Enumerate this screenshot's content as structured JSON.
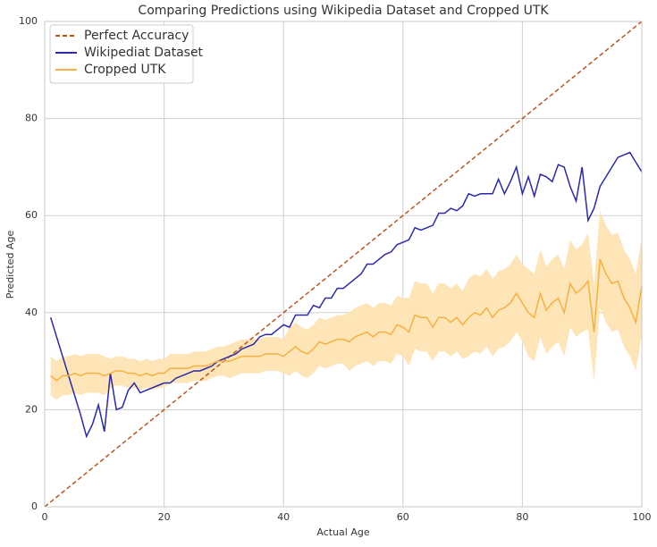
{
  "chart_data": {
    "type": "line",
    "title": "Comparing Predictions using Wikipedia Dataset and Cropped UTK",
    "x_label": "Actual Age",
    "y_label": "Predicted Age",
    "xlim": [
      0,
      100
    ],
    "ylim": [
      0,
      100
    ],
    "xticks": [
      0,
      20,
      40,
      60,
      80,
      100
    ],
    "yticks": [
      0,
      20,
      40,
      60,
      80,
      100
    ],
    "grid": true,
    "legend": "upper left",
    "x": [
      1,
      2,
      3,
      4,
      5,
      6,
      7,
      8,
      9,
      10,
      11,
      12,
      13,
      14,
      15,
      16,
      17,
      18,
      19,
      20,
      21,
      22,
      23,
      24,
      25,
      26,
      27,
      28,
      29,
      30,
      31,
      32,
      33,
      34,
      35,
      36,
      37,
      38,
      39,
      40,
      41,
      42,
      43,
      44,
      45,
      46,
      47,
      48,
      49,
      50,
      51,
      52,
      53,
      54,
      55,
      56,
      57,
      58,
      59,
      60,
      61,
      62,
      63,
      64,
      65,
      66,
      67,
      68,
      69,
      70,
      71,
      72,
      73,
      74,
      75,
      76,
      77,
      78,
      79,
      80,
      81,
      82,
      83,
      84,
      85,
      86,
      87,
      88,
      89,
      90,
      91,
      92,
      93,
      94,
      95,
      96,
      97,
      98,
      99,
      100
    ],
    "series": [
      {
        "name": "Perfect Accuracy",
        "color": "#b8561e",
        "dashed": true,
        "x": [
          0,
          100
        ],
        "values": [
          0,
          100
        ]
      },
      {
        "name": "Wikipediat Dataset",
        "color": "#2a2aa8",
        "values": [
          39,
          35,
          31,
          27,
          23,
          19,
          14.5,
          17,
          21,
          15.5,
          27.5,
          20,
          20.5,
          24,
          25.5,
          23.5,
          24,
          24.5,
          25,
          25.5,
          25.5,
          26.5,
          27,
          27.5,
          28,
          28,
          28.5,
          29,
          30,
          30.5,
          31,
          31.5,
          32.5,
          33,
          33.5,
          35,
          35.5,
          35.5,
          36.5,
          37.5,
          37,
          39.5,
          39.5,
          39.5,
          41.5,
          41,
          43,
          43,
          45,
          45,
          46,
          47,
          48,
          50,
          50,
          51,
          52,
          52.5,
          54,
          54.5,
          55,
          57.5,
          57,
          57.5,
          58,
          60.5,
          60.5,
          61.5,
          61,
          62,
          64.5,
          64,
          64.5,
          64.5,
          64.5,
          67.5,
          64.5,
          67,
          70,
          64.5,
          68,
          64,
          68.5,
          68,
          67,
          70.5,
          70,
          66,
          63,
          70,
          59,
          61.5,
          66,
          68,
          70,
          72,
          72.5,
          73,
          71,
          69
        ]
      },
      {
        "name": "Cropped UTK",
        "color": "#f5b040",
        "band_color": "#fde5b8",
        "values": [
          27,
          26,
          27,
          27,
          27.5,
          27,
          27.5,
          27.5,
          27.5,
          27,
          27.5,
          28,
          28,
          27.5,
          27.5,
          27,
          27.5,
          27,
          27.5,
          27.5,
          28.5,
          28.5,
          28.5,
          28.5,
          29,
          29,
          29,
          29.5,
          30,
          30,
          30,
          30.5,
          31,
          31,
          31,
          31,
          31.5,
          31.5,
          31.5,
          31,
          32,
          33,
          32,
          31.5,
          32.5,
          34,
          33.5,
          34,
          34.5,
          34.5,
          34,
          35,
          35.5,
          36,
          35,
          36,
          36,
          35.5,
          37.5,
          37,
          36,
          39.5,
          39,
          39,
          37,
          39,
          39,
          38,
          39,
          37.5,
          39,
          40,
          39.5,
          41,
          39,
          40.5,
          41,
          42,
          44,
          42,
          40,
          39,
          44,
          40.5,
          42,
          43,
          40,
          46,
          44,
          45,
          46.5,
          36,
          51,
          48,
          46,
          46.5,
          43,
          41,
          38,
          45.5
        ],
        "lower": [
          23,
          22,
          23,
          23,
          23.5,
          23,
          23.5,
          23.5,
          23.5,
          23,
          24.5,
          25,
          25,
          24.5,
          24.5,
          24,
          24.5,
          24,
          24.5,
          24.5,
          25.5,
          25.5,
          25.5,
          25.5,
          26,
          26,
          26,
          26.5,
          27,
          27,
          26.5,
          27,
          27.5,
          27.5,
          27.5,
          27.5,
          28,
          28,
          28,
          27.5,
          27,
          28,
          27,
          26.5,
          27.5,
          29,
          28.5,
          29,
          29.5,
          29.5,
          28,
          29,
          29.5,
          30,
          29,
          30,
          30,
          29.5,
          31.5,
          31,
          29,
          32.5,
          32,
          32,
          30,
          32,
          32,
          31,
          32,
          30.5,
          31,
          32,
          31.5,
          33,
          31,
          32.5,
          33,
          34,
          36,
          34,
          31,
          30,
          35,
          31.5,
          33,
          34,
          31,
          37,
          35,
          36,
          36.5,
          26,
          41,
          38,
          36,
          36.5,
          33,
          31,
          28,
          35.5
        ],
        "upper": [
          31,
          30,
          31,
          31,
          31.5,
          31,
          31.5,
          31.5,
          31.5,
          31,
          30.5,
          31,
          31,
          30.5,
          30.5,
          30,
          30.5,
          30,
          30.5,
          30.5,
          31.5,
          31.5,
          31.5,
          31.5,
          32,
          32,
          32,
          32.5,
          33,
          33,
          33.5,
          34,
          34.5,
          34.5,
          34.5,
          34.5,
          35,
          35,
          35,
          34.5,
          37,
          38,
          37,
          36.5,
          37.5,
          39,
          38.5,
          39,
          39.5,
          39.5,
          40,
          41,
          41.5,
          42,
          41,
          42,
          42,
          41.5,
          43.5,
          43,
          43,
          46.5,
          46,
          46,
          44,
          46,
          46,
          45,
          46,
          44.5,
          47,
          48,
          47.5,
          49,
          47,
          48.5,
          49,
          50,
          52,
          50,
          49,
          48,
          53,
          49.5,
          51,
          52,
          49,
          55,
          53,
          54,
          56.5,
          46,
          61,
          58,
          56,
          56.5,
          53,
          51,
          48,
          55.5
        ]
      }
    ]
  }
}
